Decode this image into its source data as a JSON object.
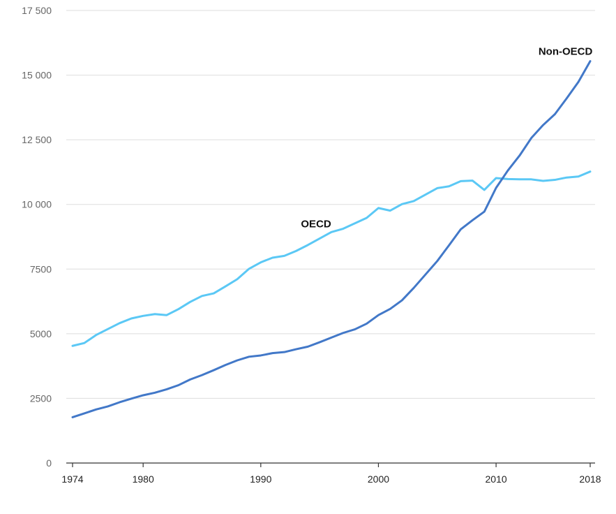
{
  "chart_data": {
    "type": "line",
    "title": "",
    "xlabel": "",
    "ylabel": "",
    "xlim": [
      1974,
      2018
    ],
    "ylim": [
      0,
      17500
    ],
    "x_ticks": [
      1974,
      1980,
      1990,
      2000,
      2010,
      2018
    ],
    "x_tick_labels": [
      "1974",
      "1980",
      "1990",
      "2000",
      "2010",
      "2018"
    ],
    "y_ticks": [
      0,
      2500,
      5000,
      7500,
      10000,
      12500,
      15000,
      17500
    ],
    "y_tick_labels": [
      "0",
      "2500",
      "5000",
      "7500",
      "10 000",
      "12 500",
      "15 000",
      "17 500"
    ],
    "grid": true,
    "x": [
      1974,
      1975,
      1976,
      1977,
      1978,
      1979,
      1980,
      1981,
      1982,
      1983,
      1984,
      1985,
      1986,
      1987,
      1988,
      1989,
      1990,
      1991,
      1992,
      1993,
      1994,
      1995,
      1996,
      1997,
      1998,
      1999,
      2000,
      2001,
      2002,
      2003,
      2004,
      2005,
      2006,
      2007,
      2008,
      2009,
      2010,
      2011,
      2012,
      2013,
      2014,
      2015,
      2016,
      2017,
      2018
    ],
    "series": [
      {
        "name": "OECD",
        "color": "#5bc8f5",
        "values": [
          4530,
          4640,
          4950,
          5180,
          5410,
          5590,
          5690,
          5760,
          5720,
          5950,
          6230,
          6460,
          6560,
          6830,
          7110,
          7510,
          7760,
          7940,
          8010,
          8200,
          8430,
          8680,
          8930,
          9060,
          9270,
          9480,
          9860,
          9760,
          10010,
          10130,
          10380,
          10630,
          10700,
          10900,
          10920,
          10560,
          11020,
          10980,
          10970,
          10970,
          10910,
          10950,
          11040,
          11080,
          11270
        ]
      },
      {
        "name": "Non-OECD",
        "color": "#4278c8",
        "values": [
          1770,
          1920,
          2070,
          2190,
          2350,
          2490,
          2620,
          2720,
          2850,
          3010,
          3230,
          3400,
          3590,
          3790,
          3970,
          4110,
          4160,
          4250,
          4290,
          4400,
          4500,
          4670,
          4850,
          5030,
          5170,
          5390,
          5720,
          5960,
          6290,
          6770,
          7290,
          7810,
          8420,
          9040,
          9390,
          9720,
          10640,
          11310,
          11890,
          12570,
          13070,
          13490,
          14100,
          14740,
          15540
        ]
      }
    ],
    "annotations": [
      {
        "text": "OECD",
        "x": 1994.7,
        "y": 9110
      },
      {
        "text": "Non-OECD",
        "x": 2015.9,
        "y": 15780
      }
    ]
  }
}
